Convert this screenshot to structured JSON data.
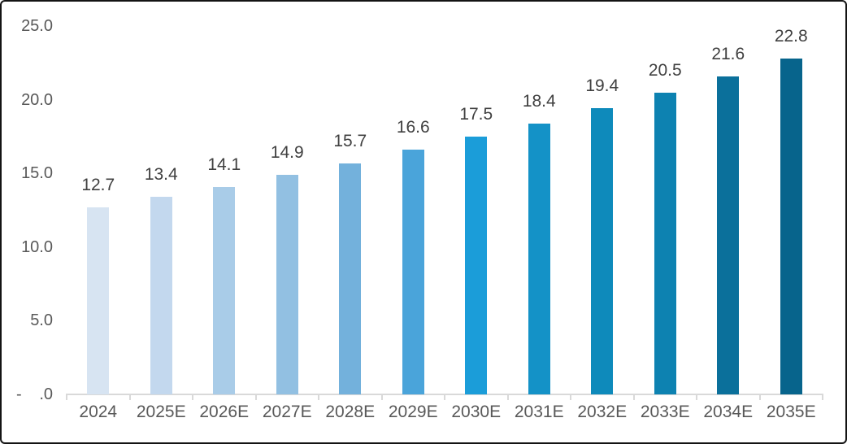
{
  "chart_data": {
    "type": "bar",
    "title": "",
    "xlabel": "",
    "ylabel": "",
    "categories": [
      "2024",
      "2025E",
      "2026E",
      "2027E",
      "2028E",
      "2029E",
      "2030E",
      "2031E",
      "2032E",
      "2033E",
      "2034E",
      "2035E"
    ],
    "values": [
      12.7,
      13.4,
      14.1,
      14.9,
      15.7,
      16.6,
      17.5,
      18.4,
      19.4,
      20.5,
      21.6,
      22.8
    ],
    "data_labels": [
      "12.7",
      "13.4",
      "14.1",
      "14.9",
      "15.7",
      "16.6",
      "17.5",
      "18.4",
      "19.4",
      "20.5",
      "21.6",
      "22.8"
    ],
    "bar_colors": [
      "#D7E4F2",
      "#C3D8EE",
      "#A9CCE8",
      "#92C0E2",
      "#73B1DC",
      "#4AA4DA",
      "#1B9DD9",
      "#1492C7",
      "#0E8ABB",
      "#0D82B1",
      "#0B709B",
      "#07648C"
    ],
    "ylim": [
      0,
      25
    ],
    "y_ticks": [
      {
        "value": 25,
        "label": "25.0"
      },
      {
        "value": 20,
        "label": "20.0"
      },
      {
        "value": 15,
        "label": "15.0"
      },
      {
        "value": 10,
        "label": "10.0"
      },
      {
        "value": 5,
        "label": "5.0"
      },
      {
        "value": 0,
        "label": ".0",
        "prefix": "-"
      }
    ],
    "grid": "off",
    "legend": "none",
    "colors": {
      "axis_line": "#D9D9D9",
      "data_label": "#404040",
      "axis_label": "#595959",
      "background": "#FFFFFF",
      "frame_border": "#141414"
    }
  }
}
